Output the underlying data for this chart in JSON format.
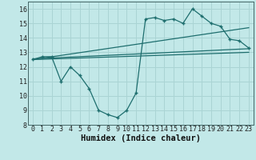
{
  "title": "",
  "xlabel": "Humidex (Indice chaleur)",
  "bg_color": "#c2e8e8",
  "grid_color": "#aad4d4",
  "line_color": "#1e6e6e",
  "xlim": [
    -0.5,
    23.5
  ],
  "ylim": [
    8,
    16.5
  ],
  "xticks": [
    0,
    1,
    2,
    3,
    4,
    5,
    6,
    7,
    8,
    9,
    10,
    11,
    12,
    13,
    14,
    15,
    16,
    17,
    18,
    19,
    20,
    21,
    22,
    23
  ],
  "yticks": [
    8,
    9,
    10,
    11,
    12,
    13,
    14,
    15,
    16
  ],
  "main_x": [
    0,
    1,
    2,
    3,
    4,
    5,
    6,
    7,
    8,
    9,
    10,
    11,
    12,
    13,
    14,
    15,
    16,
    17,
    18,
    19,
    20,
    21,
    22,
    23
  ],
  "main_y": [
    12.5,
    12.7,
    12.7,
    11.0,
    12.0,
    11.4,
    10.5,
    9.0,
    8.7,
    8.5,
    9.0,
    10.2,
    15.3,
    15.4,
    15.2,
    15.3,
    15.0,
    16.0,
    15.5,
    15.0,
    14.8,
    13.9,
    13.8,
    13.3
  ],
  "line1_x": [
    0,
    23
  ],
  "line1_y": [
    12.55,
    13.25
  ],
  "line2_x": [
    0,
    23
  ],
  "line2_y": [
    12.5,
    14.7
  ],
  "line3_x": [
    0,
    23
  ],
  "line3_y": [
    12.5,
    13.0
  ],
  "font_size_tick": 6,
  "font_size_label": 7.5
}
